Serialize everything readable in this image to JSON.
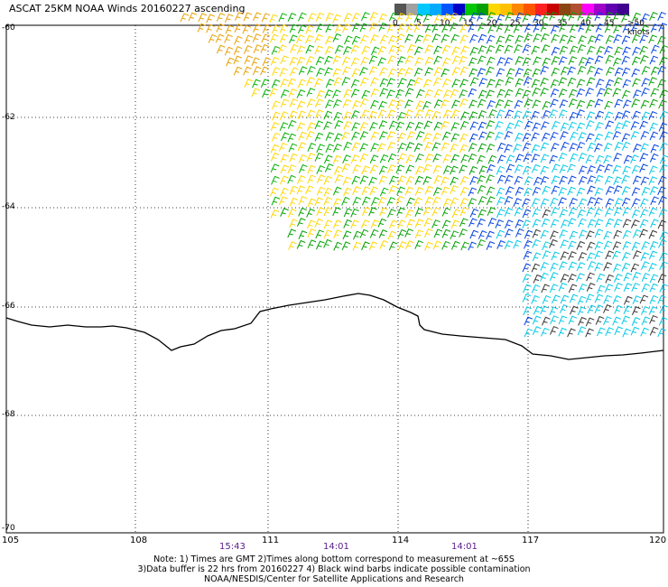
{
  "title": "ASCAT 25KM NOAA Winds 20160227 ascending",
  "legend": {
    "colors": [
      "#555555",
      "#a0a0a0",
      "#00c8ff",
      "#00aaff",
      "#0055ff",
      "#0000c8",
      "#00c800",
      "#00a000",
      "#ffd700",
      "#ffc000",
      "#ff8800",
      "#ff5500",
      "#ff2020",
      "#c80000",
      "#8b4513",
      "#b05030",
      "#ff00ff",
      "#a000c8",
      "#6000b0",
      "#400090"
    ],
    "labels": [
      "0",
      "5",
      "10",
      "15",
      "20",
      "25",
      "30",
      "35",
      "40",
      "45",
      ">50 knots"
    ]
  },
  "axes": {
    "lat_labels": [
      "-60",
      "-62",
      "-64",
      "-66",
      "-68",
      "-70"
    ],
    "lon_labels": [
      "105",
      "108",
      "111",
      "114",
      "117",
      "120"
    ]
  },
  "times": [
    "15:43",
    "14:01",
    "14:01"
  ],
  "notes": [
    "Note: 1) Times are GMT 2)Times along bottom correspond to measurement at ~65S",
    "3)Data buffer is 22 hrs from 20160227 4) Black wind barbs indicate possible contamination",
    "NOAA/NESDIS/Center for Satellite Applications and Research"
  ]
}
